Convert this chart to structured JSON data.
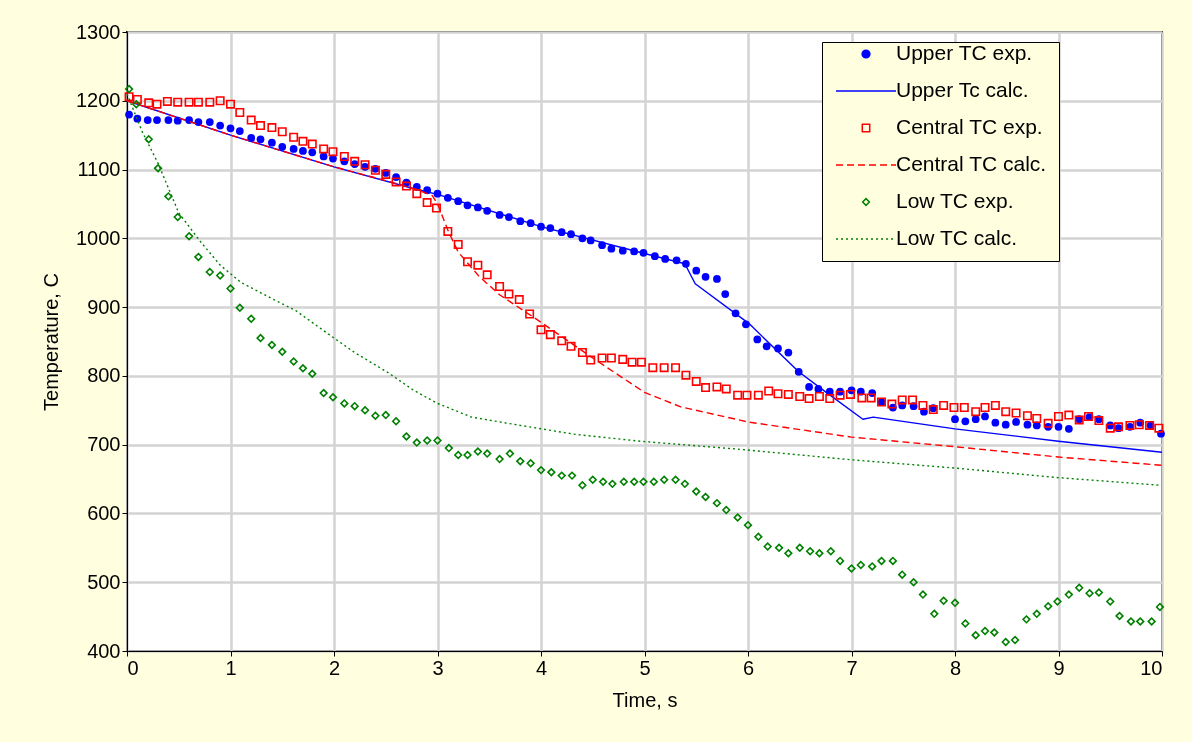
{
  "chart_data": {
    "type": "scatter",
    "xlabel": "Time, s",
    "ylabel": "Temperature, C",
    "xlim": [
      0,
      10
    ],
    "ylim": [
      400,
      1300
    ],
    "xticks": [
      0,
      1,
      2,
      3,
      4,
      5,
      6,
      7,
      8,
      9,
      10
    ],
    "yticks": [
      400,
      500,
      600,
      700,
      800,
      900,
      1000,
      1100,
      1200,
      1300
    ],
    "grid": true,
    "legend": "top right",
    "series": [
      {
        "name": "Upper TC exp.",
        "type": "scatter",
        "marker": "circle",
        "color": "#0000ff",
        "x": [
          0.02,
          0.1,
          0.2,
          0.29,
          0.4,
          0.49,
          0.6,
          0.69,
          0.8,
          0.9,
          1.0,
          1.09,
          1.2,
          1.29,
          1.4,
          1.5,
          1.61,
          1.7,
          1.79,
          1.9,
          1.99,
          2.1,
          2.2,
          2.3,
          2.4,
          2.5,
          2.6,
          2.7,
          2.8,
          2.9,
          3.0,
          3.1,
          3.2,
          3.29,
          3.39,
          3.48,
          3.6,
          3.69,
          3.8,
          3.9,
          4.0,
          4.09,
          4.2,
          4.29,
          4.4,
          4.48,
          4.59,
          4.68,
          4.79,
          4.9,
          4.99,
          5.1,
          5.2,
          5.31,
          5.4,
          5.5,
          5.59,
          5.7,
          5.78,
          5.88,
          5.98,
          6.09,
          6.18,
          6.29,
          6.39,
          6.49,
          6.59,
          6.68,
          6.79,
          6.89,
          7.0,
          7.09,
          7.2,
          7.29,
          7.4,
          7.49,
          7.6,
          7.7,
          7.79,
          8.0,
          8.1,
          8.2,
          8.29,
          8.39,
          8.49,
          8.59,
          8.7,
          8.79,
          8.9,
          9.0,
          9.1,
          9.2,
          9.3,
          9.39,
          9.5,
          9.58,
          9.69,
          9.79,
          9.89,
          9.99
        ],
        "values": [
          1180,
          1174,
          1172,
          1172,
          1172,
          1171,
          1172,
          1169,
          1169,
          1164,
          1160,
          1156,
          1146,
          1144,
          1139,
          1133,
          1130,
          1127,
          1125,
          1119,
          1116,
          1112,
          1108,
          1104,
          1101,
          1095,
          1089,
          1081,
          1075,
          1070,
          1065,
          1059,
          1054,
          1048,
          1045,
          1040,
          1034,
          1031,
          1025,
          1022,
          1017,
          1015,
          1009,
          1006,
          1000,
          997,
          990,
          985,
          982,
          981,
          979,
          974,
          970,
          968,
          963,
          953,
          944,
          941,
          919,
          891,
          875,
          853,
          843,
          840,
          834,
          806,
          784,
          781,
          777,
          777,
          779,
          777,
          775,
          762,
          754,
          757,
          756,
          748,
          753,
          737,
          734,
          737,
          741,
          732,
          729,
          733,
          729,
          728,
          726,
          726,
          723,
          737,
          740,
          737,
          728,
          724,
          726,
          732,
          728,
          716
        ]
      },
      {
        "name": "Upper Tc calc.",
        "type": "line",
        "line_style": "solid",
        "color": "#0000ff",
        "x": [
          0,
          1,
          2,
          2.8,
          3.0,
          4.0,
          5.0,
          5.39,
          5.49,
          6.01,
          6.49,
          6.72,
          7.11,
          7.21,
          8.0,
          9.0,
          10
        ],
        "values": [
          1200,
          1150,
          1104,
          1071,
          1064,
          1017,
          978,
          963,
          934,
          876,
          806,
          780,
          737,
          740,
          723,
          705,
          689
        ]
      },
      {
        "name": "Central TC exp.",
        "type": "scatter",
        "marker": "square",
        "color": "#ff0000",
        "x": [
          0.02,
          0.1,
          0.21,
          0.29,
          0.39,
          0.49,
          0.6,
          0.69,
          0.8,
          0.9,
          1.0,
          1.09,
          1.2,
          1.29,
          1.4,
          1.5,
          1.61,
          1.7,
          1.79,
          1.9,
          1.99,
          2.1,
          2.2,
          2.3,
          2.4,
          2.5,
          2.6,
          2.7,
          2.8,
          2.9,
          2.99,
          3.1,
          3.2,
          3.29,
          3.39,
          3.48,
          3.6,
          3.69,
          3.79,
          3.89,
          4.0,
          4.09,
          4.2,
          4.29,
          4.4,
          4.48,
          4.59,
          4.68,
          4.79,
          4.88,
          4.97,
          5.08,
          5.19,
          5.3,
          5.4,
          5.5,
          5.59,
          5.7,
          5.79,
          5.9,
          5.99,
          6.1,
          6.2,
          6.29,
          6.39,
          6.5,
          6.59,
          6.69,
          6.79,
          6.89,
          6.99,
          7.1,
          7.19,
          7.29,
          7.39,
          7.49,
          7.59,
          7.69,
          7.79,
          7.89,
          7.99,
          8.09,
          8.2,
          8.29,
          8.39,
          8.49,
          8.59,
          8.7,
          8.79,
          8.9,
          9.0,
          9.1,
          9.2,
          9.29,
          9.39,
          9.5,
          9.58,
          9.69,
          9.78,
          9.88,
          9.97
        ],
        "values": [
          1206,
          1202,
          1197,
          1195,
          1199,
          1198,
          1198,
          1198,
          1198,
          1200,
          1195,
          1183,
          1172,
          1164,
          1161,
          1155,
          1147,
          1141,
          1137,
          1130,
          1126,
          1119,
          1112,
          1107,
          1099,
          1093,
          1082,
          1076,
          1065,
          1052,
          1044,
          1010,
          991,
          966,
          961,
          947,
          930,
          919,
          911,
          890,
          867,
          860,
          851,
          843,
          834,
          823,
          826,
          826,
          824,
          820,
          820,
          812,
          812,
          812,
          801,
          792,
          783,
          784,
          781,
          772,
          772,
          772,
          778,
          774,
          773,
          770,
          767,
          770,
          767,
          772,
          773,
          768,
          768,
          762,
          759,
          765,
          765,
          757,
          751,
          757,
          754,
          754,
          748,
          754,
          757,
          748,
          746,
          742,
          738,
          731,
          741,
          743,
          736,
          741,
          735,
          724,
          726,
          728,
          729,
          728,
          724
        ]
      },
      {
        "name": "Central TC calc.",
        "type": "line",
        "line_style": "dashed",
        "color": "#ff0000",
        "x": [
          0,
          0.5,
          1,
          1.5,
          2,
          2.5,
          2.8,
          2.95,
          3.0,
          3.1,
          3.2,
          3.4,
          3.6,
          4.0,
          4.5,
          4.77,
          5.0,
          5.35,
          6.0,
          7.0,
          8.0,
          9.0,
          10
        ],
        "values": [
          1200,
          1175,
          1150,
          1127,
          1104,
          1084,
          1071,
          1062,
          1050,
          1012,
          980,
          945,
          918,
          878,
          826,
          799,
          776,
          755,
          733,
          711,
          697,
          682,
          670
        ]
      },
      {
        "name": "Low TC exp.",
        "type": "scatter",
        "marker": "diamond",
        "color": "#008000",
        "x": [
          0.02,
          0.09,
          0.21,
          0.3,
          0.4,
          0.49,
          0.6,
          0.69,
          0.8,
          0.9,
          1.0,
          1.09,
          1.2,
          1.29,
          1.4,
          1.5,
          1.61,
          1.7,
          1.79,
          1.9,
          1.99,
          2.1,
          2.2,
          2.3,
          2.4,
          2.5,
          2.6,
          2.7,
          2.8,
          2.9,
          3.0,
          3.11,
          3.2,
          3.29,
          3.39,
          3.48,
          3.6,
          3.7,
          3.8,
          3.9,
          4.0,
          4.1,
          4.2,
          4.3,
          4.4,
          4.5,
          4.6,
          4.69,
          4.8,
          4.9,
          4.99,
          5.09,
          5.19,
          5.3,
          5.39,
          5.5,
          5.59,
          5.7,
          5.79,
          5.9,
          6.0,
          6.1,
          6.19,
          6.3,
          6.39,
          6.5,
          6.6,
          6.69,
          6.8,
          6.89,
          7.0,
          7.09,
          7.2,
          7.29,
          7.4,
          7.49,
          7.6,
          7.69,
          7.8,
          7.89,
          8.0,
          8.1,
          8.2,
          8.29,
          8.38,
          8.49,
          8.58,
          8.69,
          8.79,
          8.9,
          8.99,
          9.1,
          9.2,
          9.3,
          9.39,
          9.5,
          9.59,
          9.7,
          9.79,
          9.9,
          9.98
        ],
        "values": [
          1217,
          1195,
          1144,
          1102,
          1061,
          1031,
          1003,
          973,
          951,
          946,
          927,
          899,
          883,
          855,
          845,
          835,
          821,
          811,
          803,
          775,
          769,
          760,
          756,
          750,
          742,
          743,
          734,
          712,
          703,
          706,
          706,
          695,
          685,
          685,
          690,
          687,
          679,
          687,
          676,
          673,
          663,
          660,
          655,
          655,
          641,
          649,
          646,
          643,
          646,
          646,
          646,
          646,
          649,
          649,
          643,
          632,
          624,
          615,
          605,
          594,
          583,
          566,
          552,
          550,
          542,
          550,
          545,
          542,
          545,
          531,
          520,
          525,
          523,
          531,
          531,
          511,
          500,
          482,
          454,
          473,
          470,
          440,
          423,
          429,
          427,
          413,
          416,
          446,
          454,
          465,
          472,
          482,
          492,
          484,
          485,
          472,
          451,
          443,
          443,
          443,
          464
        ]
      },
      {
        "name": "Low TC calc.",
        "type": "line",
        "line_style": "dotted",
        "color": "#008000",
        "x": [
          0,
          0.15,
          0.3,
          0.5,
          0.7,
          0.9,
          1.1,
          1.43,
          1.63,
          2.0,
          2.2,
          2.53,
          2.77,
          3.0,
          3.33,
          3.76,
          4.33,
          4.96,
          5.94,
          7.0,
          8.0,
          9.0,
          9.98
        ],
        "values": [
          1210,
          1154,
          1109,
          1037,
          997,
          961,
          936,
          910,
          895,
          855,
          834,
          804,
          779,
          760,
          740,
          729,
          715,
          705,
          693,
          678,
          666,
          652,
          641
        ]
      }
    ]
  }
}
